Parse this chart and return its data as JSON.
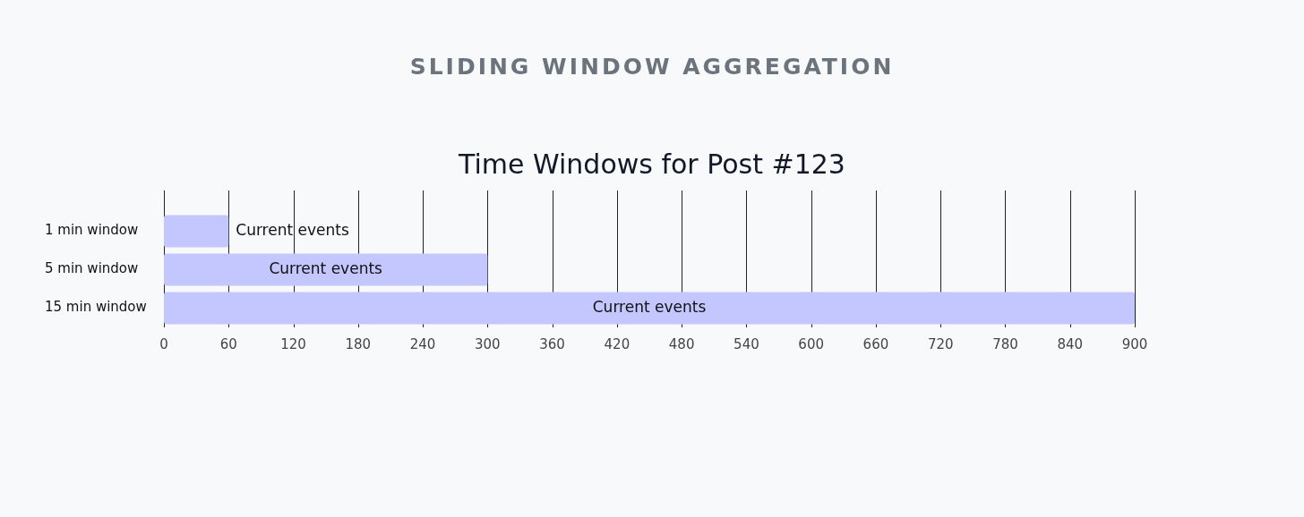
{
  "chart_data": {
    "type": "bar",
    "title": "SLIDING WINDOW AGGREGATION",
    "subtitle": "Time Windows for Post #123",
    "orientation": "horizontal",
    "categories": [
      "1 min window",
      "5 min window",
      "15 min window"
    ],
    "values": [
      60,
      300,
      900
    ],
    "color": "#c3c7fd",
    "value_labels": [
      "Current events",
      "Current events",
      "Current events"
    ],
    "xlim": [
      0,
      900
    ],
    "xticks": [
      0,
      60,
      120,
      180,
      240,
      300,
      360,
      420,
      480,
      540,
      600,
      660,
      720,
      780,
      840,
      900
    ],
    "grid": "x"
  }
}
